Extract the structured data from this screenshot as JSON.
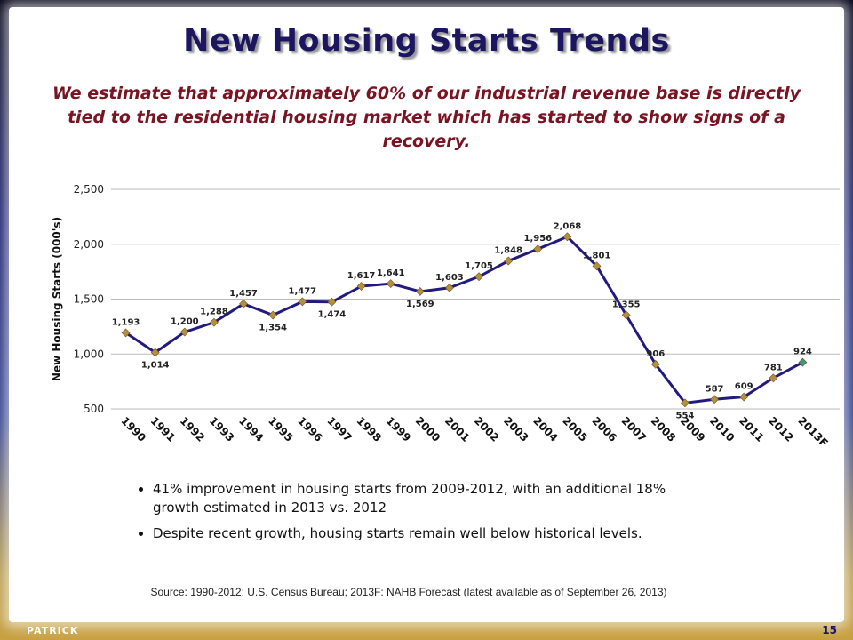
{
  "title": "New Housing Starts Trends",
  "subtitle": "We estimate that approximately 60% of our industrial revenue base is directly tied to the residential housing market which has started to show signs of a recovery.",
  "chart_data": {
    "type": "line",
    "y_label": "New Housing Starts (000's)",
    "categories": [
      "1990",
      "1991",
      "1992",
      "1993",
      "1994",
      "1995",
      "1996",
      "1997",
      "1998",
      "1999",
      "2000",
      "2001",
      "2002",
      "2003",
      "2004",
      "2005",
      "2006",
      "2007",
      "2008",
      "2009",
      "2010",
      "2011",
      "2012",
      "2013F"
    ],
    "series": [
      {
        "color": "#231a7e",
        "marker_color": "#b58f3c",
        "forecast_marker_color": "#3a9a7c",
        "values": [
          1193,
          1014,
          1200,
          1288,
          1457,
          1354,
          1477,
          1474,
          1617,
          1641,
          1569,
          1603,
          1705,
          1848,
          1956,
          2068,
          1801,
          1355,
          906,
          554,
          587,
          609,
          781,
          924
        ],
        "value_labels": [
          "1,193",
          "1,014",
          "1,200",
          "1,288",
          "1,457",
          "1,354",
          "1,477",
          "1,474",
          "1,617",
          "1,641",
          "1,569",
          "1,603",
          "1,705",
          "1,848",
          "1,956",
          "2,068",
          "1,801",
          "1,355",
          "906",
          "554",
          "587",
          "609",
          "781",
          "924"
        ]
      }
    ],
    "ylim": [
      500,
      2500
    ],
    "yticks": [
      500,
      {
        "value": 1000,
        "label": "1,000"
      },
      {
        "value": 1500,
        "label": "1,500"
      },
      {
        "value": 2000,
        "label": "2,000"
      },
      {
        "value": 2500,
        "label": "2,500"
      }
    ],
    "grid": true
  },
  "bullets": [
    "41% improvement in housing starts from 2009-2012, with an additional 18% growth estimated in 2013 vs. 2012",
    "Despite recent growth, housing starts remain well below historical levels."
  ],
  "source": "Source: 1990-2012: U.S. Census Bureau; 2013F: NAHB Forecast (latest available as of September 26, 2013)",
  "logo": "PATRICK",
  "page_number": "15"
}
